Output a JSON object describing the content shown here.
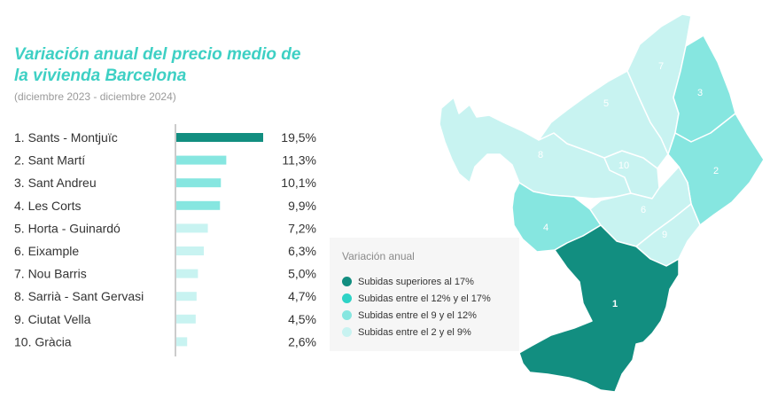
{
  "chart_title": "Variación anual del precio medio de la vivienda Barcelona",
  "chart_subtitle": "(diciembre 2023 - diciembre 2024)",
  "colors": {
    "title": "#3ed0c4",
    "over17": "#128e80",
    "between12and17": "#2ed3c6",
    "between9and12": "#86e6e0",
    "between2and9": "#c8f3f1"
  },
  "chart_data": {
    "type": "bar",
    "orientation": "horizontal",
    "title": "Variación anual del precio medio de la vivienda Barcelona",
    "subtitle": "(diciembre 2023 - diciembre 2024)",
    "categories": [
      "1. Sants - Montjuïc",
      "2. Sant Martí",
      "3. Sant Andreu",
      "4. Les Corts",
      "5. Horta - Guinardó",
      "6. Eixample",
      "7. Nou Barris",
      "8. Sarrià - Sant Gervasi",
      "9. Ciutat Vella",
      "10. Gràcia"
    ],
    "values": [
      19.5,
      11.3,
      10.1,
      9.9,
      7.2,
      6.3,
      5.0,
      4.7,
      4.5,
      2.6
    ],
    "value_labels": [
      "19,5%",
      "11,3%",
      "10,1%",
      "9,9%",
      "7,2%",
      "6,3%",
      "5,0%",
      "4,7%",
      "4,5%",
      "2,6%"
    ],
    "xlim": [
      0,
      20
    ],
    "unit": "%"
  },
  "legend": {
    "title": "Variación anual",
    "items": [
      {
        "label": "Subidas superiores al 17%",
        "color": "#128e80"
      },
      {
        "label": "Subidas entre el 12% y el 17%",
        "color": "#2ed3c6"
      },
      {
        "label": "Subidas entre el 9 y el 12%",
        "color": "#86e6e0"
      },
      {
        "label": "Subidas entre el 2 y el 9%",
        "color": "#c8f3f1"
      }
    ]
  },
  "map": {
    "districts": [
      {
        "number": "1",
        "color": "#128e80"
      },
      {
        "number": "2",
        "color": "#86e6e0"
      },
      {
        "number": "3",
        "color": "#86e6e0"
      },
      {
        "number": "4",
        "color": "#86e6e0"
      },
      {
        "number": "5",
        "color": "#c8f3f1"
      },
      {
        "number": "6",
        "color": "#c8f3f1"
      },
      {
        "number": "7",
        "color": "#c8f3f1"
      },
      {
        "number": "8",
        "color": "#c8f3f1"
      },
      {
        "number": "9",
        "color": "#c8f3f1"
      },
      {
        "number": "10",
        "color": "#c8f3f1"
      }
    ]
  }
}
